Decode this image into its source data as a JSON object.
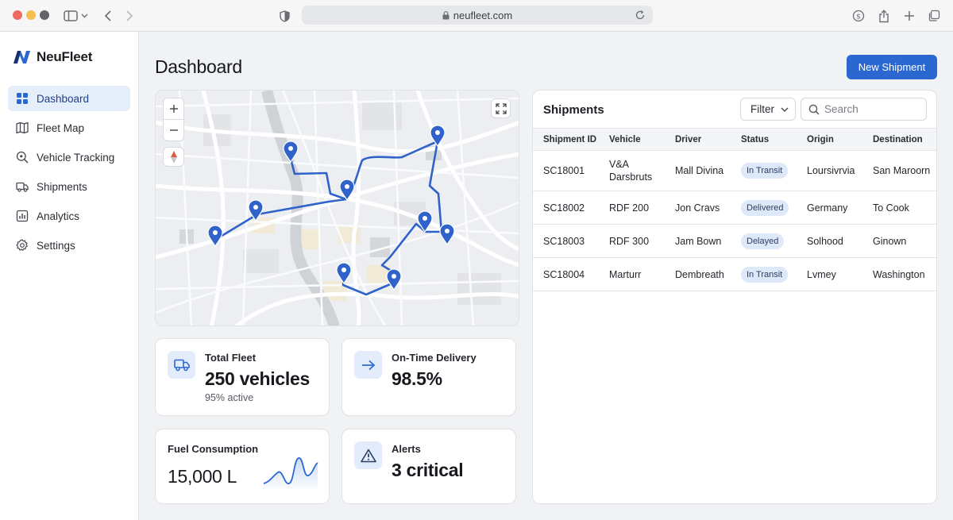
{
  "browser": {
    "url": "neufleet.com"
  },
  "brand": {
    "name": "NeuFleet"
  },
  "sidebar": {
    "items": [
      {
        "label": "Dashboard",
        "icon": "grid-icon",
        "active": true
      },
      {
        "label": "Fleet Map",
        "icon": "map-icon",
        "active": false
      },
      {
        "label": "Vehicle Tracking",
        "icon": "search-location-icon",
        "active": false
      },
      {
        "label": "Shipments",
        "icon": "truck-icon",
        "active": false
      },
      {
        "label": "Analytics",
        "icon": "bar-chart-icon",
        "active": false
      },
      {
        "label": "Settings",
        "icon": "gear-icon",
        "active": false
      }
    ]
  },
  "header": {
    "title": "Dashboard",
    "new_shipment_label": "New Shipment"
  },
  "stats": {
    "total_fleet": {
      "label": "Total Fleet",
      "value": "250 vehicles",
      "sub": "95% active",
      "icon": "truck-icon"
    },
    "on_time": {
      "label": "On-Time Delivery",
      "value": "98.5%",
      "icon": "arrow-right-icon"
    },
    "fuel": {
      "label": "Fuel Consumption",
      "value": "15,000 L",
      "icon": "sparkline-icon"
    },
    "alerts": {
      "label": "Alerts",
      "value": "3 critical",
      "icon": "warning-icon"
    }
  },
  "shipments": {
    "title": "Shipments",
    "filter_label": "Filter",
    "search_placeholder": "Search",
    "columns": [
      "Shipment ID",
      "Vehicle",
      "Driver",
      "Status",
      "Origin",
      "Destination"
    ],
    "rows": [
      {
        "id": "SC18001",
        "vehicle": "V&A Darsbruts",
        "driver": "Mall Divina",
        "status": "In Transit",
        "origin": "Loursivrvia",
        "destination": "San Maroorn"
      },
      {
        "id": "SC18002",
        "vehicle": "RDF 200",
        "driver": "Jon Cravs",
        "status": "Delivered",
        "origin": "Germany",
        "destination": "To Cook"
      },
      {
        "id": "SC18003",
        "vehicle": "RDF 300",
        "driver": "Jam Bown",
        "status": "Delayed",
        "origin": "Solhood",
        "destination": "Ginown"
      },
      {
        "id": "SC18004",
        "vehicle": "Marturr",
        "driver": "Dembreath",
        "status": "In Transit",
        "origin": "Lvmey",
        "destination": "Washington"
      }
    ]
  },
  "colors": {
    "accent": "#2a67d1",
    "route": "#2f63c9",
    "active_nav_bg": "#e5eefb",
    "badge_bg": "#dde8f8"
  }
}
